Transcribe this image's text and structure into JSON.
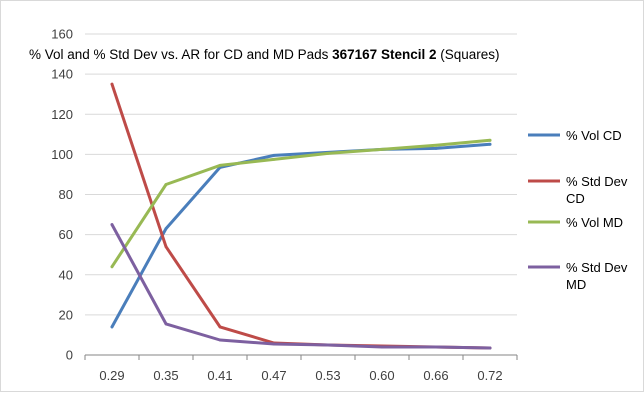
{
  "chart_data": {
    "type": "line",
    "title": {
      "prefix": "% Vol and % Std Dev vs. AR for CD and MD Pads ",
      "bold": "367167 Stencil 2",
      "suffix": " (Squares)"
    },
    "xlabel": "",
    "ylabel": "",
    "categories": [
      "0.29",
      "0.35",
      "0.41",
      "0.47",
      "0.53",
      "0.60",
      "0.66",
      "0.72"
    ],
    "ylim": [
      0,
      160
    ],
    "yticks": [
      0,
      20,
      40,
      60,
      80,
      100,
      120,
      140,
      160
    ],
    "grid": "horizontal",
    "legend_position": "right",
    "series": [
      {
        "name": "% Vol CD",
        "color": "#4a7ebb",
        "values": [
          14,
          63,
          93.5,
          99.5,
          101,
          102.5,
          103,
          105
        ]
      },
      {
        "name": "% Std Dev CD",
        "color": "#be4b48",
        "values": [
          135,
          54,
          14,
          6,
          5,
          4.5,
          4,
          3.5
        ]
      },
      {
        "name": "% Vol MD",
        "color": "#98b954",
        "values": [
          44,
          85,
          94.5,
          97.5,
          100.5,
          102.5,
          104.5,
          107
        ]
      },
      {
        "name": "% Std Dev MD",
        "color": "#7d60a0",
        "values": [
          65,
          15.5,
          7.5,
          5.5,
          5,
          4,
          4,
          3.5
        ]
      }
    ]
  }
}
